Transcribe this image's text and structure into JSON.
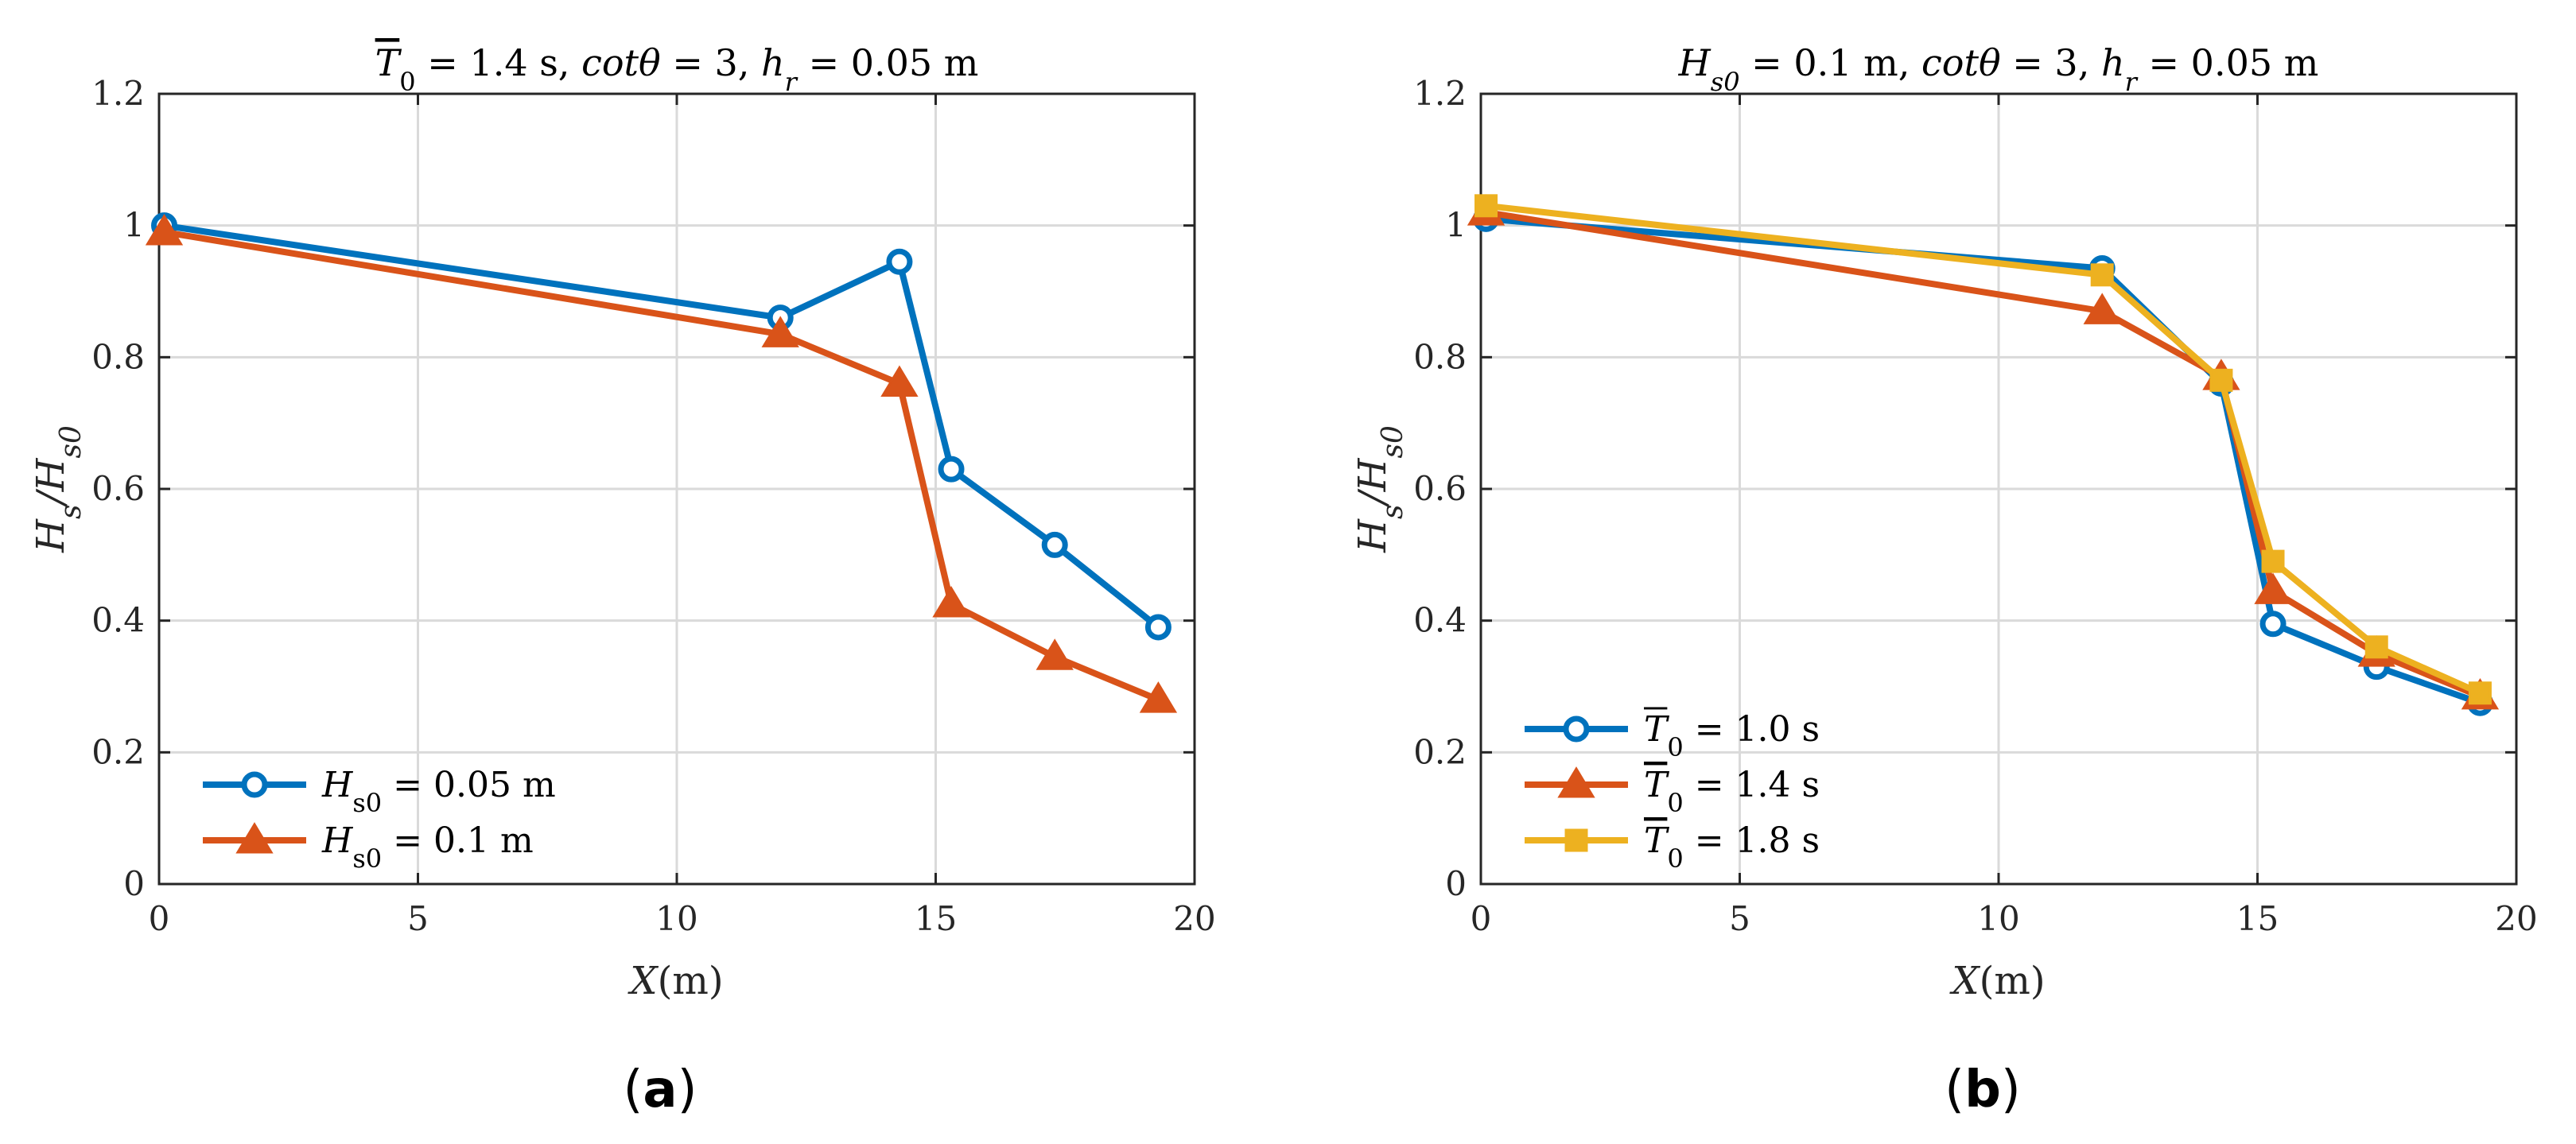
{
  "chart_data": [
    {
      "panel": "(a)",
      "panel_letter": "a",
      "type": "line",
      "title_parts": [
        "T",
        "0",
        " = 1.4 s, ",
        "cotθ",
        " = 3, ",
        "h",
        "r",
        " = 0.05 m"
      ],
      "title": "T̅0 = 1.4 s, cotθ = 3, hr = 0.05 m",
      "xlabel": "X(m)",
      "ylabel": "Hs/Hs0",
      "xlim": [
        0,
        20
      ],
      "ylim": [
        0,
        1.2
      ],
      "xticks": [
        0,
        5,
        10,
        15,
        20
      ],
      "xtick_labels": [
        "0",
        "5",
        "10",
        "15",
        "20"
      ],
      "yticks": [
        0,
        0.2,
        0.4,
        0.6,
        0.8,
        1.0,
        1.2
      ],
      "ytick_labels": [
        "0",
        "0.2",
        "0.4",
        "0.6",
        "0.8",
        "1",
        "1.2"
      ],
      "grid": true,
      "legend_position": "bottom-left",
      "series": [
        {
          "name": "Hs0 = 0.05 m",
          "legend_main": "H",
          "legend_sub": "s0",
          "legend_rest": " = 0.05 m",
          "color": "#0072BD",
          "marker": "circle",
          "x": [
            0.1,
            12.0,
            14.3,
            15.3,
            17.3,
            19.3
          ],
          "y": [
            1.0,
            0.86,
            0.945,
            0.63,
            0.515,
            0.39
          ]
        },
        {
          "name": "Hs0 = 0.1 m",
          "legend_main": "H",
          "legend_sub": "s0",
          "legend_rest": " = 0.1 m",
          "color": "#D95319",
          "marker": "triangle",
          "x": [
            0.1,
            12.0,
            14.3,
            15.3,
            17.3,
            19.3
          ],
          "y": [
            0.99,
            0.835,
            0.76,
            0.425,
            0.345,
            0.28
          ]
        }
      ]
    },
    {
      "panel": "(b)",
      "panel_letter": "b",
      "type": "line",
      "title_parts": [
        "H",
        "s0",
        " = 0.1 m, ",
        "cotθ",
        " = 3, ",
        "h",
        "r",
        " = 0.05 m"
      ],
      "title": "Hs0 = 0.1 m, cotθ = 3, hr = 0.05 m",
      "xlabel": "X(m)",
      "ylabel": "Hs/Hs0",
      "xlim": [
        0,
        20
      ],
      "ylim": [
        0,
        1.2
      ],
      "xticks": [
        0,
        5,
        10,
        15,
        20
      ],
      "xtick_labels": [
        "0",
        "5",
        "10",
        "15",
        "20"
      ],
      "yticks": [
        0,
        0.2,
        0.4,
        0.6,
        0.8,
        1.0,
        1.2
      ],
      "ytick_labels": [
        "0",
        "0.2",
        "0.4",
        "0.6",
        "0.8",
        "1",
        "1.2"
      ],
      "grid": true,
      "legend_position": "bottom-left",
      "series": [
        {
          "name": "T̅0 = 1.0 s",
          "legend_main": "T",
          "legend_sub": "0",
          "legend_rest": " = 1.0 s",
          "color": "#0072BD",
          "marker": "circle",
          "x": [
            0.1,
            12.0,
            14.3,
            15.3,
            17.3,
            19.3
          ],
          "y": [
            1.01,
            0.935,
            0.76,
            0.395,
            0.33,
            0.275
          ]
        },
        {
          "name": "T̅0 = 1.4 s",
          "legend_main": "T",
          "legend_sub": "0",
          "legend_rest": " = 1.4 s",
          "color": "#D95319",
          "marker": "triangle",
          "x": [
            0.1,
            12.0,
            14.3,
            15.3,
            17.3,
            19.3
          ],
          "y": [
            1.02,
            0.87,
            0.77,
            0.445,
            0.35,
            0.285
          ]
        },
        {
          "name": "T̅0 = 1.8 s",
          "legend_main": "T",
          "legend_sub": "0",
          "legend_rest": " = 1.8 s",
          "color": "#EDB120",
          "marker": "square",
          "x": [
            0.1,
            12.0,
            14.3,
            15.3,
            17.3,
            19.3
          ],
          "y": [
            1.03,
            0.925,
            0.765,
            0.49,
            0.36,
            0.29
          ]
        }
      ]
    }
  ]
}
